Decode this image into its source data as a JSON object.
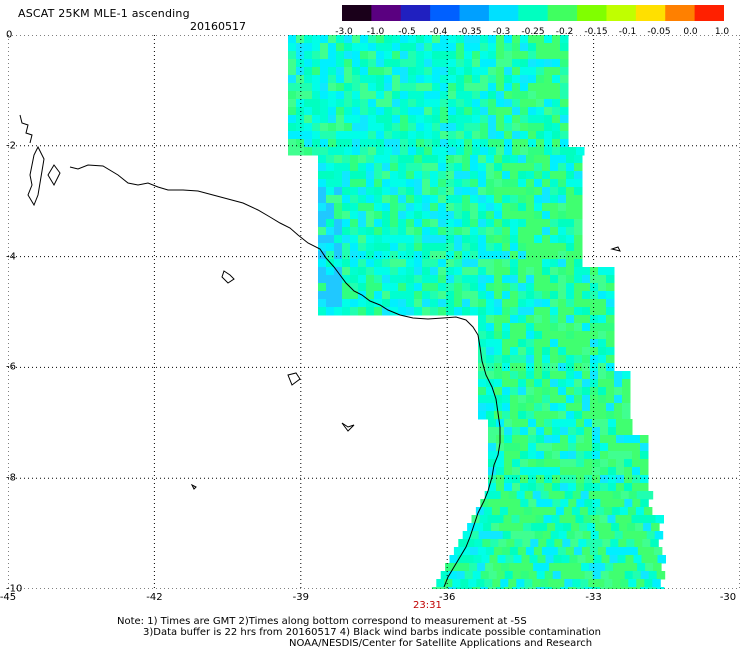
{
  "header": {
    "title": "ASCAT 25KM MLE-1 ascending",
    "date": "20160517"
  },
  "color_scale": {
    "labels": [
      "-3.0",
      "-1.0",
      "-0.5",
      "-0.4",
      "-0.35",
      "-0.3",
      "-0.25",
      "-0.2",
      "-0.15",
      "-0.1",
      "-0.05",
      "0.0",
      "1.0"
    ],
    "colors": [
      "#1a001a",
      "#5a0080",
      "#2020c0",
      "#0060ff",
      "#00a0ff",
      "#00e0ff",
      "#00ffc0",
      "#40ff60",
      "#80ff00",
      "#c0ff00",
      "#ffe000",
      "#ff8000",
      "#ff2000"
    ]
  },
  "axes": {
    "lat_labels": [
      "0",
      "-2",
      "-4",
      "-6",
      "-8",
      "-10"
    ],
    "lon_labels": [
      "-45",
      "-42",
      "-39",
      "-36",
      "-33",
      "-30"
    ]
  },
  "time_marker": "23:31",
  "notes": {
    "line1": "Note: 1) Times are GMT 2)Times along bottom correspond to measurement at -5S",
    "line2": "3)Data buffer is 22 hrs from 20160517 4) Black wind barbs indicate possible contamination",
    "line3": "NOAA/NESDIS/Center for Satellite Applications and Research"
  }
}
